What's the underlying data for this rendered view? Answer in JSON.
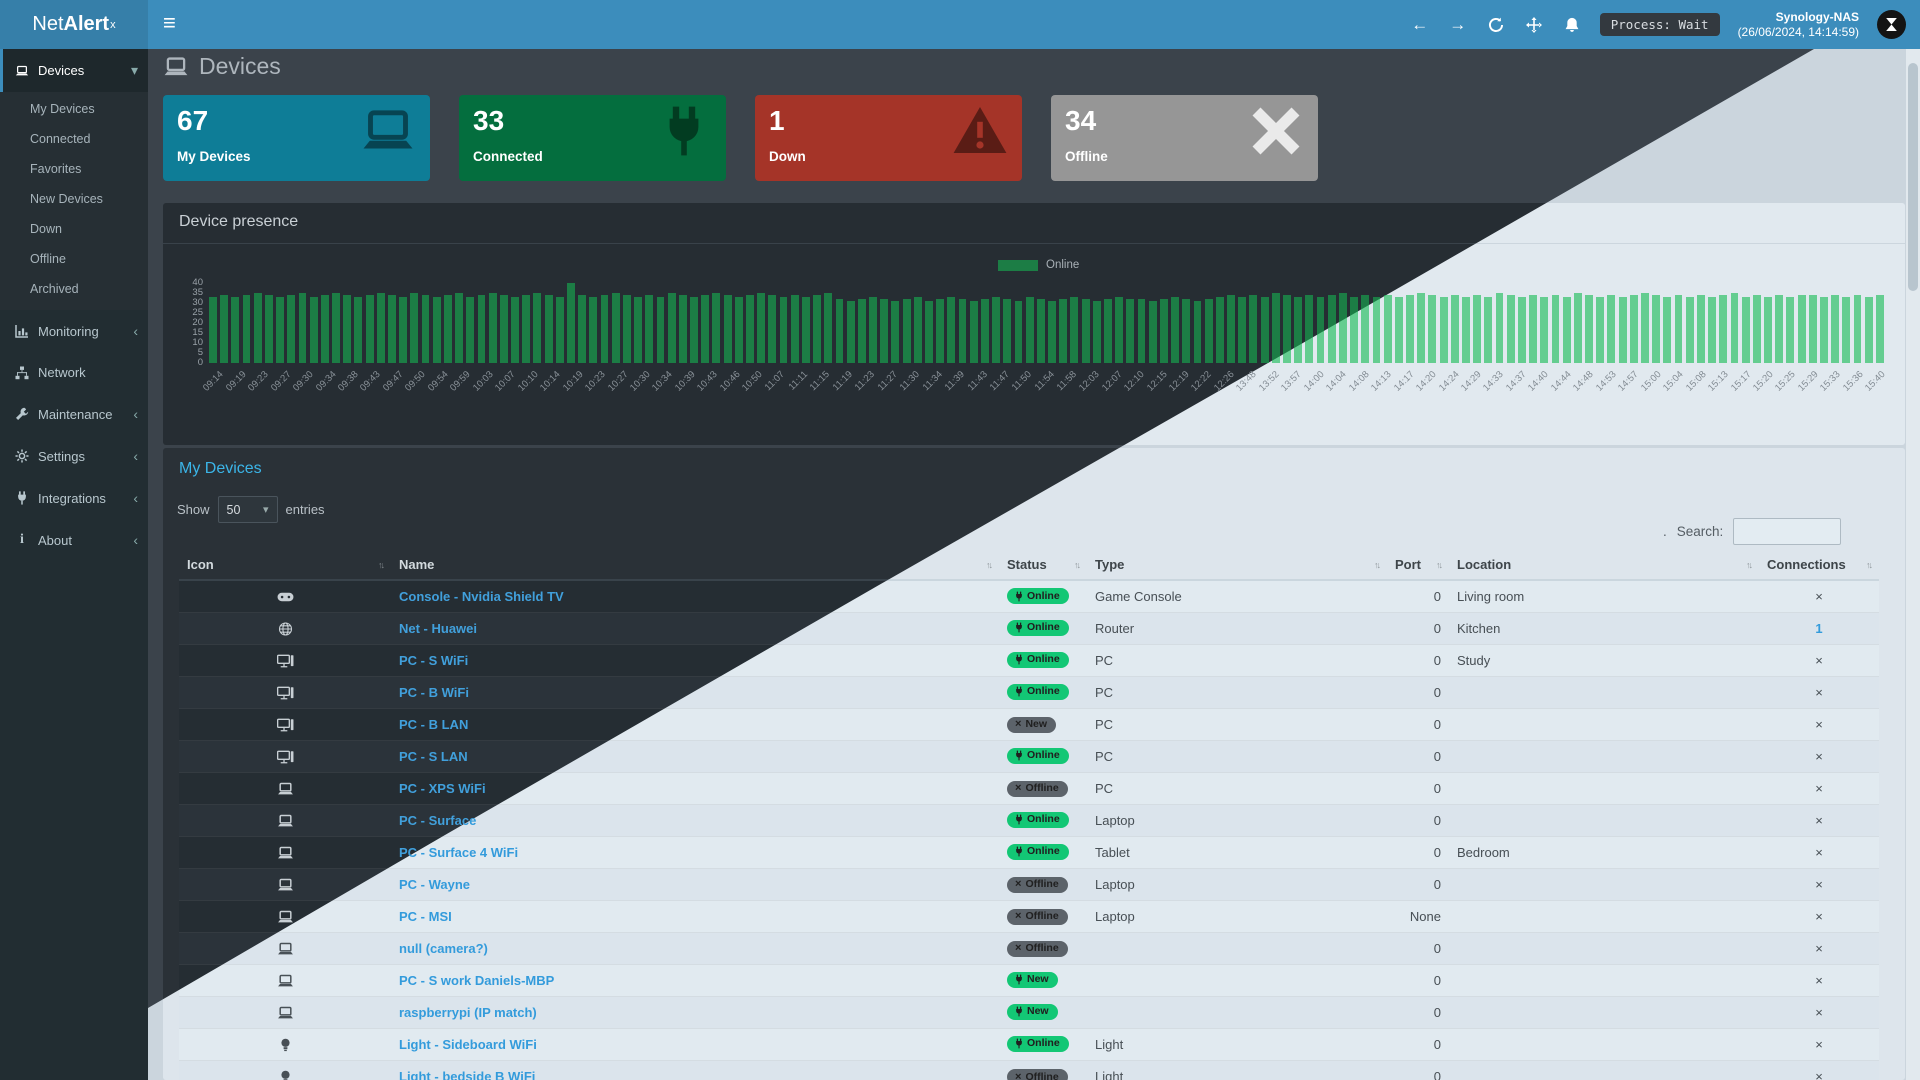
{
  "navbar": {
    "logo_light": "Net",
    "logo_bold": "Alert",
    "logo_sup": "x",
    "process_badge": "Process: Wait",
    "host_name": "Synology-NAS",
    "host_time": "(26/06/2024, 14:14:59)"
  },
  "sidebar": {
    "devices_label": "Devices",
    "devices_submenu": [
      "My Devices",
      "Connected",
      "Favorites",
      "New Devices",
      "Down",
      "Offline",
      "Archived"
    ],
    "sections": [
      {
        "label": "Monitoring",
        "icon": "chart-icon",
        "chevron": true
      },
      {
        "label": "Network",
        "icon": "sitemap-icon",
        "chevron": false
      },
      {
        "label": "Maintenance",
        "icon": "wrench-icon",
        "chevron": true
      },
      {
        "label": "Settings",
        "icon": "gear-icon",
        "chevron": true
      },
      {
        "label": "Integrations",
        "icon": "plug-icon",
        "chevron": true
      },
      {
        "label": "About",
        "icon": "info-icon",
        "chevron": true
      }
    ]
  },
  "page": {
    "title": "Devices"
  },
  "cards": [
    {
      "value": "67",
      "label": "My Devices",
      "color": "#0e7d97",
      "icon": "laptop-icon"
    },
    {
      "value": "33",
      "label": "Connected",
      "color": "#046e3e",
      "icon": "plug-icon"
    },
    {
      "value": "1",
      "label": "Down",
      "color": "#a53428",
      "icon": "warning-icon"
    },
    {
      "value": "34",
      "label": "Offline",
      "color": "#969696",
      "icon": "x-icon"
    }
  ],
  "chart_data": {
    "type": "bar",
    "title": "Device presence",
    "legend": [
      "Online"
    ],
    "legend_position": "top-center",
    "ylim": [
      0,
      40
    ],
    "yticks": [
      40,
      35,
      30,
      25,
      20,
      15,
      10,
      5,
      0
    ],
    "bar_color_dark": "#1c7d45",
    "bar_color_light": "#77c98f",
    "label_every_n_bars": 2,
    "labels": [
      "09:14",
      "09:19",
      "09:23",
      "09:27",
      "09:30",
      "09:34",
      "09:38",
      "09:43",
      "09:47",
      "09:50",
      "09:54",
      "09:59",
      "10:03",
      "10:07",
      "10:10",
      "10:14",
      "10:19",
      "10:23",
      "10:27",
      "10:30",
      "10:34",
      "10:39",
      "10:43",
      "10:46",
      "10:50",
      "11:07",
      "11:11",
      "11:15",
      "11:19",
      "11:23",
      "11:27",
      "11:30",
      "11:34",
      "11:39",
      "11:43",
      "11:47",
      "11:50",
      "11:54",
      "11:58",
      "12:03",
      "12:07",
      "12:10",
      "12:15",
      "12:19",
      "12:22",
      "12:26",
      "13:48",
      "13:52",
      "13:57",
      "14:00",
      "14:04",
      "14:08",
      "14:13",
      "14:17",
      "14:20",
      "14:24",
      "14:29",
      "14:33",
      "14:37",
      "14:40",
      "14:44",
      "14:48",
      "14:53",
      "14:57",
      "15:00",
      "15:04",
      "15:08",
      "15:13",
      "15:17",
      "15:20",
      "15:25",
      "15:29",
      "15:33",
      "15:36",
      "15:40"
    ],
    "values": [
      33,
      34,
      33,
      34,
      35,
      34,
      33,
      34,
      35,
      33,
      34,
      35,
      34,
      33,
      34,
      35,
      34,
      33,
      35,
      34,
      33,
      34,
      35,
      33,
      34,
      35,
      34,
      33,
      34,
      35,
      34,
      33,
      40,
      34,
      33,
      34,
      35,
      34,
      33,
      34,
      33,
      35,
      34,
      33,
      34,
      35,
      34,
      33,
      34,
      35,
      34,
      33,
      34,
      33,
      34,
      35,
      32,
      31,
      32,
      33,
      32,
      31,
      32,
      33,
      31,
      32,
      33,
      32,
      31,
      32,
      33,
      32,
      31,
      33,
      32,
      31,
      32,
      33,
      32,
      31,
      32,
      33,
      32,
      32,
      31,
      32,
      33,
      32,
      31,
      32,
      33,
      34,
      33,
      34,
      33,
      35,
      34,
      33,
      34,
      33,
      34,
      35,
      33,
      34,
      33,
      34,
      33,
      34,
      35,
      34,
      33,
      34,
      33,
      34,
      33,
      35,
      34,
      33,
      34,
      33,
      34,
      33,
      35,
      34,
      33,
      34,
      33,
      34,
      35,
      34,
      33,
      34,
      33,
      34,
      33,
      34,
      35,
      33,
      34,
      33,
      34,
      33,
      34,
      34,
      33,
      34,
      33,
      34,
      33,
      34
    ]
  },
  "devices_table": {
    "section_title": "My Devices",
    "show_label": "Show",
    "page_size": "50",
    "entries_label": "entries",
    "search_prefix": ".",
    "search_label": "Search:",
    "search_value": "",
    "columns": [
      "Icon",
      "Name",
      "Status",
      "Type",
      "Port",
      "Location",
      "Connections"
    ],
    "rows": [
      {
        "icon": "gamepad-icon",
        "name": "Console - Nvidia Shield TV",
        "status": "Online",
        "status_style": "online",
        "type": "Game Console",
        "port": "0",
        "location": "Living room",
        "connections": "×"
      },
      {
        "icon": "globe-icon",
        "name": "Net - Huawei",
        "status": "Online",
        "status_style": "online",
        "type": "Router",
        "port": "0",
        "location": "Kitchen",
        "connections": "1",
        "connections_link": true
      },
      {
        "icon": "desktop-icon",
        "name": "PC - S WiFi",
        "status": "Online",
        "status_style": "online",
        "type": "PC",
        "port": "0",
        "location": "Study",
        "connections": "×"
      },
      {
        "icon": "desktop-icon",
        "name": "PC - B WiFi",
        "status": "Online",
        "status_style": "online",
        "type": "PC",
        "port": "0",
        "location": "",
        "connections": "×"
      },
      {
        "icon": "desktop-icon",
        "name": "PC - B LAN",
        "status": "New",
        "status_style": "new-gray",
        "type": "PC",
        "port": "0",
        "location": "",
        "connections": "×"
      },
      {
        "icon": "desktop-icon",
        "name": "PC - S LAN",
        "status": "Online",
        "status_style": "online",
        "type": "PC",
        "port": "0",
        "location": "",
        "connections": "×"
      },
      {
        "icon": "laptop-icon",
        "name": "PC - XPS WiFi",
        "status": "Offline",
        "status_style": "offline",
        "type": "PC",
        "port": "0",
        "location": "",
        "connections": "×"
      },
      {
        "icon": "laptop-icon",
        "name": "PC - Surface",
        "status": "Online",
        "status_style": "online",
        "type": "Laptop",
        "port": "0",
        "location": "",
        "connections": "×"
      },
      {
        "icon": "laptop-icon",
        "name": "PC - Surface 4 WiFi",
        "status": "Online",
        "status_style": "online",
        "type": "Tablet",
        "port": "0",
        "location": "Bedroom",
        "connections": "×"
      },
      {
        "icon": "laptop-icon",
        "name": "PC - Wayne",
        "status": "Offline",
        "status_style": "offline",
        "type": "Laptop",
        "port": "0",
        "location": "",
        "connections": "×"
      },
      {
        "icon": "laptop-icon",
        "name": "PC - MSI",
        "status": "Offline",
        "status_style": "offline",
        "type": "Laptop",
        "port": "None",
        "location": "",
        "connections": "×"
      },
      {
        "icon": "laptop-icon",
        "name": "null (camera?)",
        "status": "Offline",
        "status_style": "offline",
        "type": "",
        "port": "0",
        "location": "",
        "connections": "×"
      },
      {
        "icon": "laptop-icon",
        "name": "PC - S work Daniels-MBP",
        "status": "New",
        "status_style": "new-green",
        "type": "",
        "port": "0",
        "location": "",
        "connections": "×"
      },
      {
        "icon": "laptop-icon",
        "name": "raspberrypi (IP match)",
        "status": "New",
        "status_style": "new-green",
        "type": "",
        "port": "0",
        "location": "",
        "connections": "×"
      },
      {
        "icon": "bulb-icon",
        "name": "Light - Sideboard WiFi",
        "status": "Online",
        "status_style": "online",
        "type": "Light",
        "port": "0",
        "location": "",
        "connections": "×"
      },
      {
        "icon": "bulb-icon",
        "name": "Light - bedside B WiFi",
        "status": "Offline",
        "status_style": "offline",
        "type": "Light",
        "port": "0",
        "location": "",
        "connections": "×"
      }
    ]
  }
}
